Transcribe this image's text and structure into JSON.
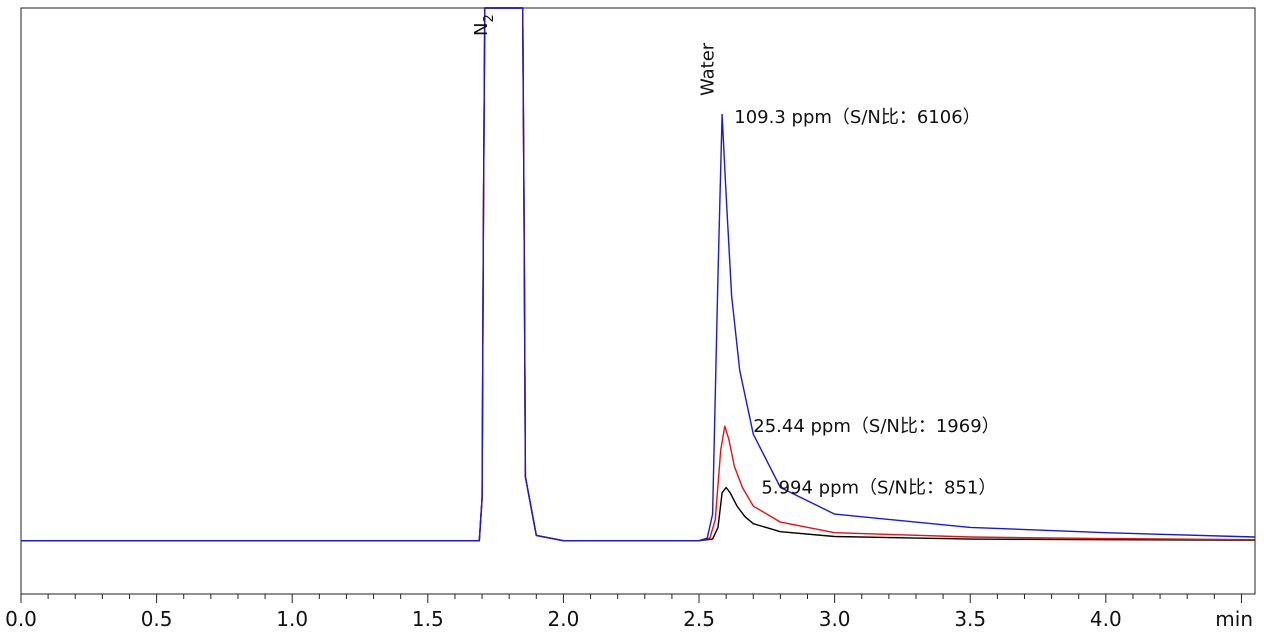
{
  "chart_data": {
    "type": "line",
    "title": "",
    "xlabel": "",
    "x_unit": "min",
    "ylabel": "",
    "xlim": [
      0.0,
      4.55
    ],
    "ylim": [
      -0.1,
      1.0
    ],
    "x_ticks": [
      0.0,
      0.5,
      1.0,
      1.5,
      2.0,
      2.5,
      3.0,
      3.5,
      4.0
    ],
    "x_tick_labels": [
      "0.0",
      "0.5",
      "1.0",
      "1.5",
      "2.0",
      "2.5",
      "3.0",
      "3.5",
      "4.0"
    ],
    "x_minor_step": 0.1,
    "grid": false,
    "legend": "none",
    "peak_labels": [
      {
        "text": "N",
        "subscript": "2",
        "x": 1.77
      },
      {
        "text": "Water",
        "x": 2.59
      }
    ],
    "series": [
      {
        "color": "#1a1ad0",
        "points": [
          [
            0,
            0
          ],
          [
            1.69,
            0.0
          ],
          [
            1.7,
            0.08
          ],
          [
            1.705,
            0.6
          ],
          [
            1.71,
            1.0
          ],
          [
            1.85,
            1.0
          ],
          [
            1.855,
            0.6
          ],
          [
            1.86,
            0.12
          ],
          [
            1.9,
            0.01
          ],
          [
            2.0,
            0.0
          ],
          [
            2.5,
            0.0
          ],
          [
            2.53,
            0.005
          ],
          [
            2.55,
            0.05
          ],
          [
            2.57,
            0.5
          ],
          [
            2.585,
            0.8
          ],
          [
            2.6,
            0.65
          ],
          [
            2.62,
            0.46
          ],
          [
            2.65,
            0.32
          ],
          [
            2.7,
            0.2
          ],
          [
            2.8,
            0.1
          ],
          [
            3.0,
            0.05
          ],
          [
            3.5,
            0.025
          ],
          [
            4.0,
            0.015
          ],
          [
            4.55,
            0.007
          ]
        ],
        "annotation": "109.3 ppm（S/N比：6106）"
      },
      {
        "color": "#e01414",
        "points": [
          [
            0,
            0
          ],
          [
            1.69,
            0.0
          ],
          [
            1.7,
            0.08
          ],
          [
            1.705,
            0.6
          ],
          [
            1.71,
            1.0
          ],
          [
            1.85,
            1.0
          ],
          [
            1.855,
            0.6
          ],
          [
            1.86,
            0.12
          ],
          [
            1.9,
            0.01
          ],
          [
            2.0,
            0.0
          ],
          [
            2.5,
            0.0
          ],
          [
            2.54,
            0.005
          ],
          [
            2.56,
            0.04
          ],
          [
            2.58,
            0.17
          ],
          [
            2.595,
            0.215
          ],
          [
            2.61,
            0.19
          ],
          [
            2.63,
            0.14
          ],
          [
            2.66,
            0.1
          ],
          [
            2.7,
            0.065
          ],
          [
            2.8,
            0.035
          ],
          [
            3.0,
            0.015
          ],
          [
            3.5,
            0.007
          ],
          [
            4.0,
            0.004
          ],
          [
            4.55,
            0.002
          ]
        ],
        "annotation": "25.44 ppm（S/N比：1969）"
      },
      {
        "color": "#000000",
        "points": [
          [
            0,
            0
          ],
          [
            1.69,
            0.0
          ],
          [
            1.7,
            0.08
          ],
          [
            1.705,
            0.6
          ],
          [
            1.71,
            1.0
          ],
          [
            1.85,
            1.0
          ],
          [
            1.855,
            0.6
          ],
          [
            1.86,
            0.12
          ],
          [
            1.9,
            0.01
          ],
          [
            2.0,
            0.0
          ],
          [
            2.5,
            0.0
          ],
          [
            2.55,
            0.003
          ],
          [
            2.57,
            0.025
          ],
          [
            2.585,
            0.09
          ],
          [
            2.6,
            0.1
          ],
          [
            2.615,
            0.09
          ],
          [
            2.64,
            0.065
          ],
          [
            2.67,
            0.045
          ],
          [
            2.7,
            0.032
          ],
          [
            2.8,
            0.017
          ],
          [
            3.0,
            0.008
          ],
          [
            3.5,
            0.003
          ],
          [
            4.0,
            0.002
          ],
          [
            4.55,
            0.001
          ]
        ],
        "annotation": "5.994 ppm（S/N比：851）"
      }
    ]
  }
}
